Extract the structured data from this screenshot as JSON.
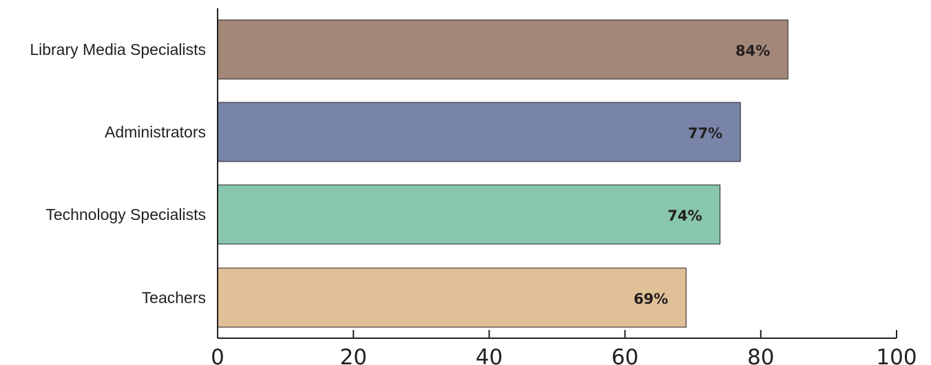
{
  "chart_data": {
    "type": "bar",
    "orientation": "horizontal",
    "categories": [
      "Library Media Specialists",
      "Administrators",
      "Technology Specialists",
      "Teachers"
    ],
    "values": [
      84,
      77,
      74,
      69
    ],
    "value_labels": [
      "84%",
      "77%",
      "74%",
      "69%"
    ],
    "colors": [
      "#a38778",
      "#7884a8",
      "#88c6ad",
      "#e0c096"
    ],
    "xlim": [
      0,
      100
    ],
    "xticks": [
      0,
      20,
      40,
      60,
      80,
      100
    ],
    "xtick_labels": [
      "0",
      "20",
      "40",
      "60",
      "80",
      "100"
    ],
    "title": "",
    "xlabel": "",
    "ylabel": "",
    "grid": false,
    "legend": "none"
  }
}
